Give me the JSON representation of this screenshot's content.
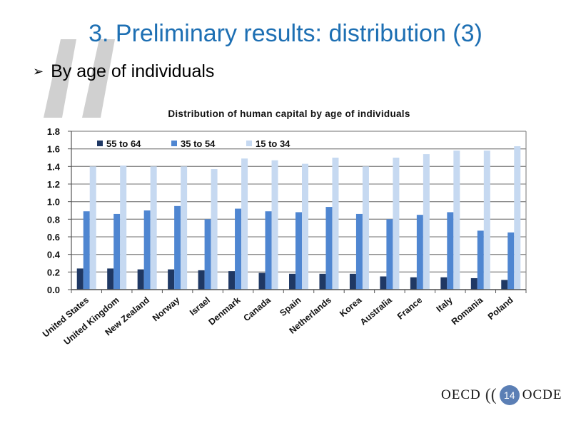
{
  "slide": {
    "title": "3. Preliminary results: distribution (3)",
    "bullet": "By age of individuals",
    "page_number": "14"
  },
  "footer": {
    "logo_left": "OECD",
    "logo_right": "OCDE"
  },
  "colors": {
    "title": "#1d6fb3",
    "series": [
      "#1f3864",
      "#4f86d1",
      "#c6d9f1"
    ]
  },
  "chart_data": {
    "type": "bar",
    "title": "Distribution of human capital by age of individuals",
    "categories": [
      "United States",
      "United Kingdom",
      "New Zealand",
      "Norway",
      "Israel",
      "Denmark",
      "Canada",
      "Spain",
      "Netherlands",
      "Korea",
      "Australia",
      "France",
      "Italy",
      "Romania",
      "Poland"
    ],
    "series": [
      {
        "name": "55 to 64",
        "values": [
          0.24,
          0.24,
          0.23,
          0.23,
          0.22,
          0.21,
          0.19,
          0.18,
          0.18,
          0.18,
          0.15,
          0.14,
          0.14,
          0.13,
          0.11
        ]
      },
      {
        "name": "35 to 54",
        "values": [
          0.89,
          0.86,
          0.9,
          0.95,
          0.8,
          0.92,
          0.89,
          0.88,
          0.94,
          0.86,
          0.8,
          0.85,
          0.88,
          0.67,
          0.65
        ]
      },
      {
        "name": "15 to 34",
        "values": [
          1.4,
          1.41,
          1.4,
          1.4,
          1.37,
          1.49,
          1.47,
          1.43,
          1.5,
          1.4,
          1.5,
          1.54,
          1.58,
          1.58,
          1.63
        ]
      }
    ],
    "ylim": [
      0,
      1.8
    ],
    "yticks": [
      "0.0",
      "0.2",
      "0.4",
      "0.6",
      "0.8",
      "1.0",
      "1.2",
      "1.4",
      "1.6",
      "1.8"
    ],
    "grid": true,
    "legend_position": "top-left"
  }
}
